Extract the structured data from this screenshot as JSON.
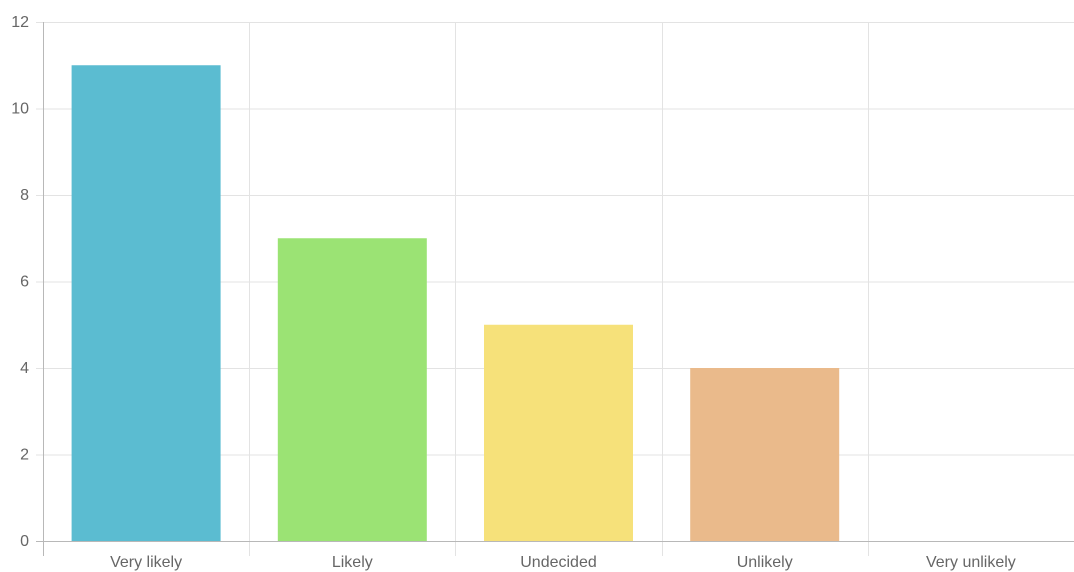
{
  "chart_data": {
    "type": "bar",
    "categories": [
      "Very likely",
      "Likely",
      "Undecided",
      "Unlikely",
      "Very unlikely"
    ],
    "values": [
      11,
      7,
      5,
      4,
      0
    ],
    "colors": [
      "#5bbcd1",
      "#9be374",
      "#f6e17a",
      "#eaba8b",
      "#f0a0a0"
    ],
    "ylim": [
      0,
      12
    ],
    "yticks": [
      0,
      2,
      4,
      6,
      8,
      10,
      12
    ],
    "grid": true,
    "title": "",
    "xlabel": "",
    "ylabel": ""
  }
}
